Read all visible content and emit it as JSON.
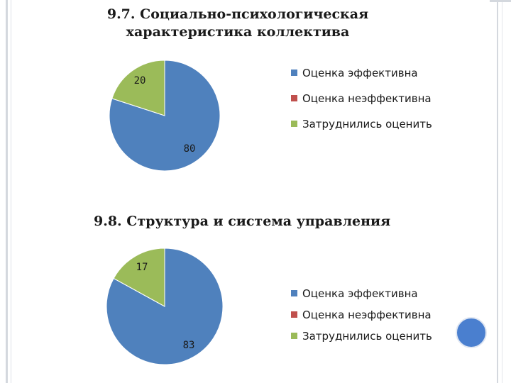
{
  "chart_data": [
    {
      "type": "pie",
      "title": "9.7. Социально-психологическая характеристика коллектива",
      "title_lines": [
        "9.7. Социально-психологическая",
        "характеристика коллектива"
      ],
      "categories": [
        "Оценка эффективна",
        "Оценка неэффективна",
        "Затруднились оценить"
      ],
      "values": [
        80,
        0,
        20
      ],
      "data_labels": [
        "80",
        "",
        "20"
      ],
      "colors": [
        "#4f81bd",
        "#c0504d",
        "#9bbb59"
      ],
      "legend_position": "right"
    },
    {
      "type": "pie",
      "title": "9.8. Структура и система управления",
      "categories": [
        "Оценка эффективна",
        "Оценка неэффективна",
        "Затруднились оценить"
      ],
      "values": [
        83,
        0,
        17
      ],
      "data_labels": [
        "83",
        "",
        "17"
      ],
      "colors": [
        "#4f81bd",
        "#c0504d",
        "#9bbb59"
      ],
      "legend_position": "right"
    }
  ]
}
